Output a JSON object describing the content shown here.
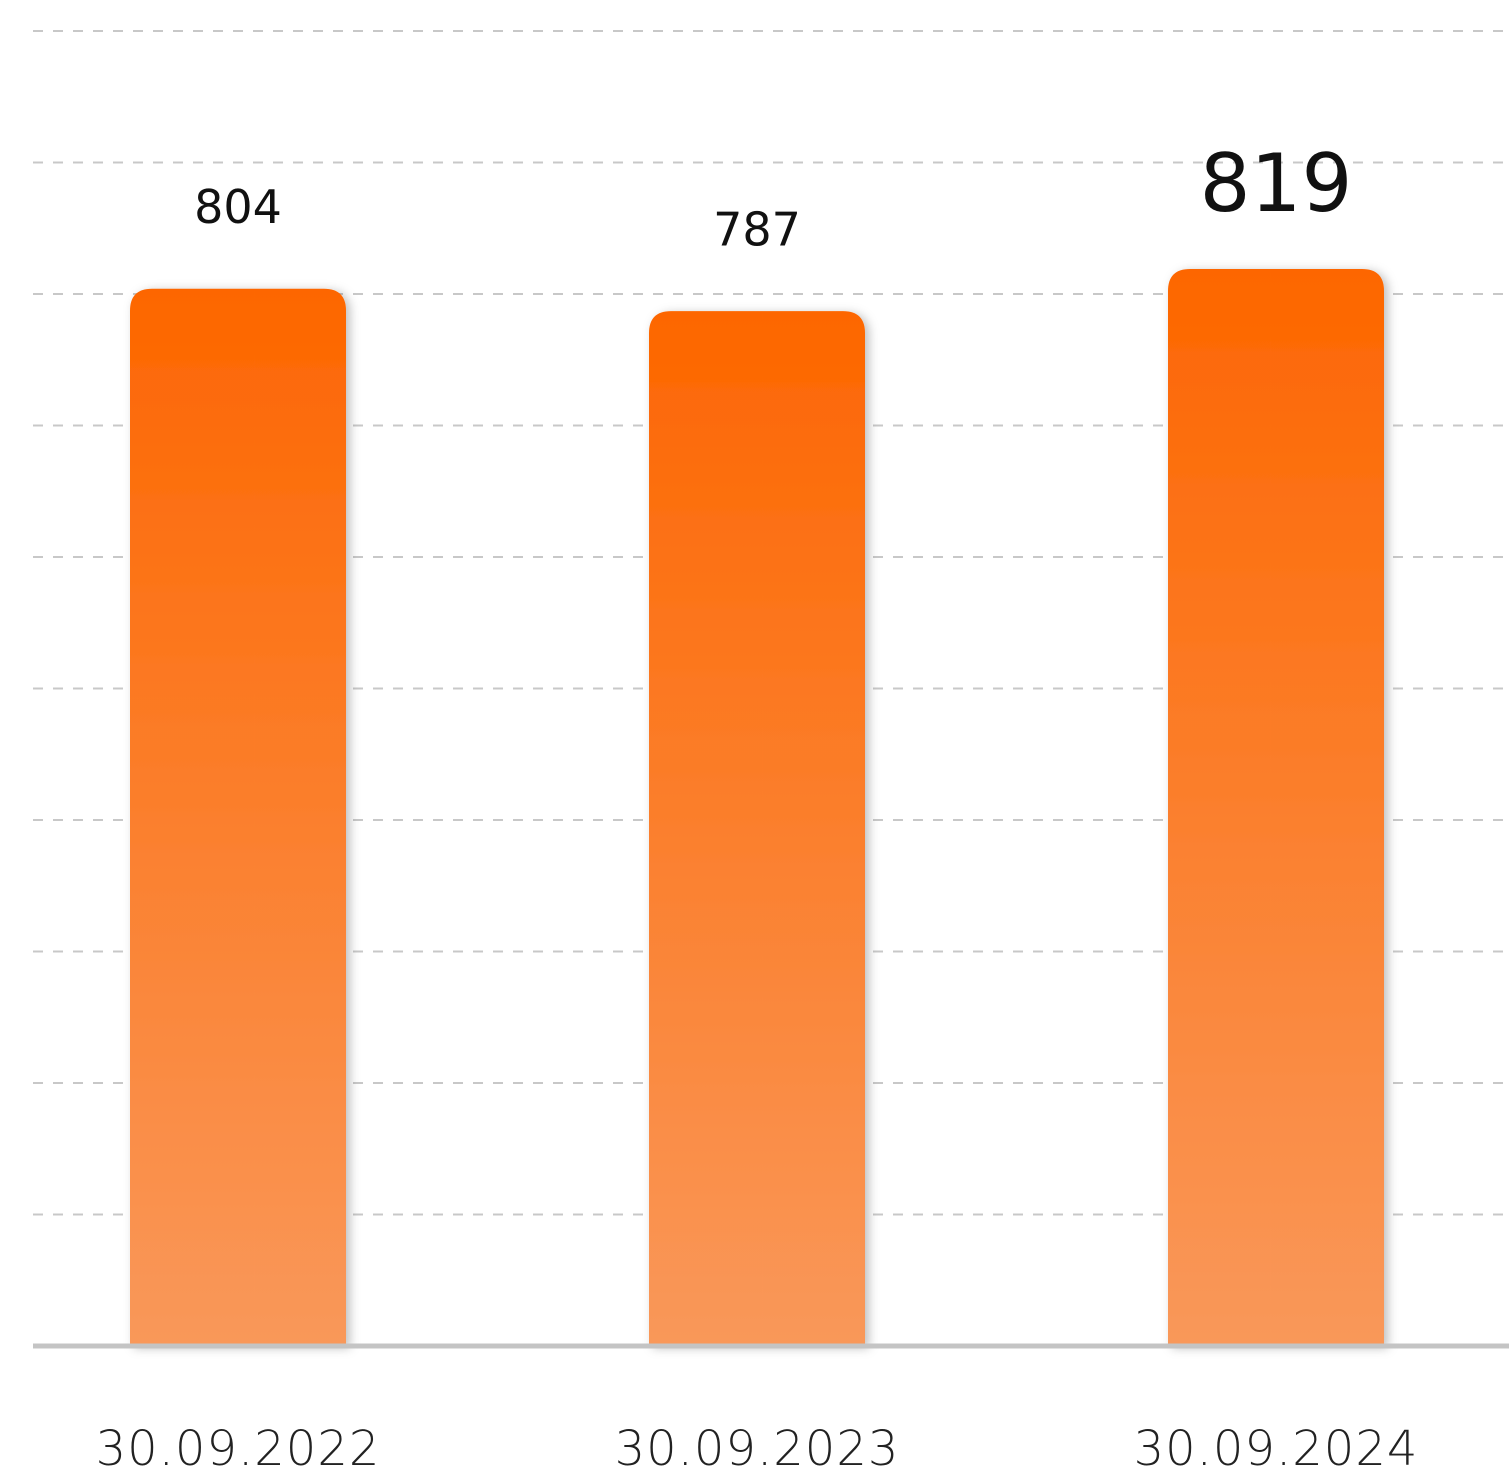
{
  "chart_data": {
    "type": "bar",
    "categories": [
      "30.09.2022",
      "30.09.2023",
      "30.09.2024"
    ],
    "values": [
      804,
      787,
      819
    ],
    "color": "#fd6600",
    "ylim": [
      0,
      1000
    ],
    "yticks": [
      0,
      100,
      200,
      300,
      400,
      500,
      600,
      700,
      800,
      900,
      1000
    ],
    "grid": true
  }
}
